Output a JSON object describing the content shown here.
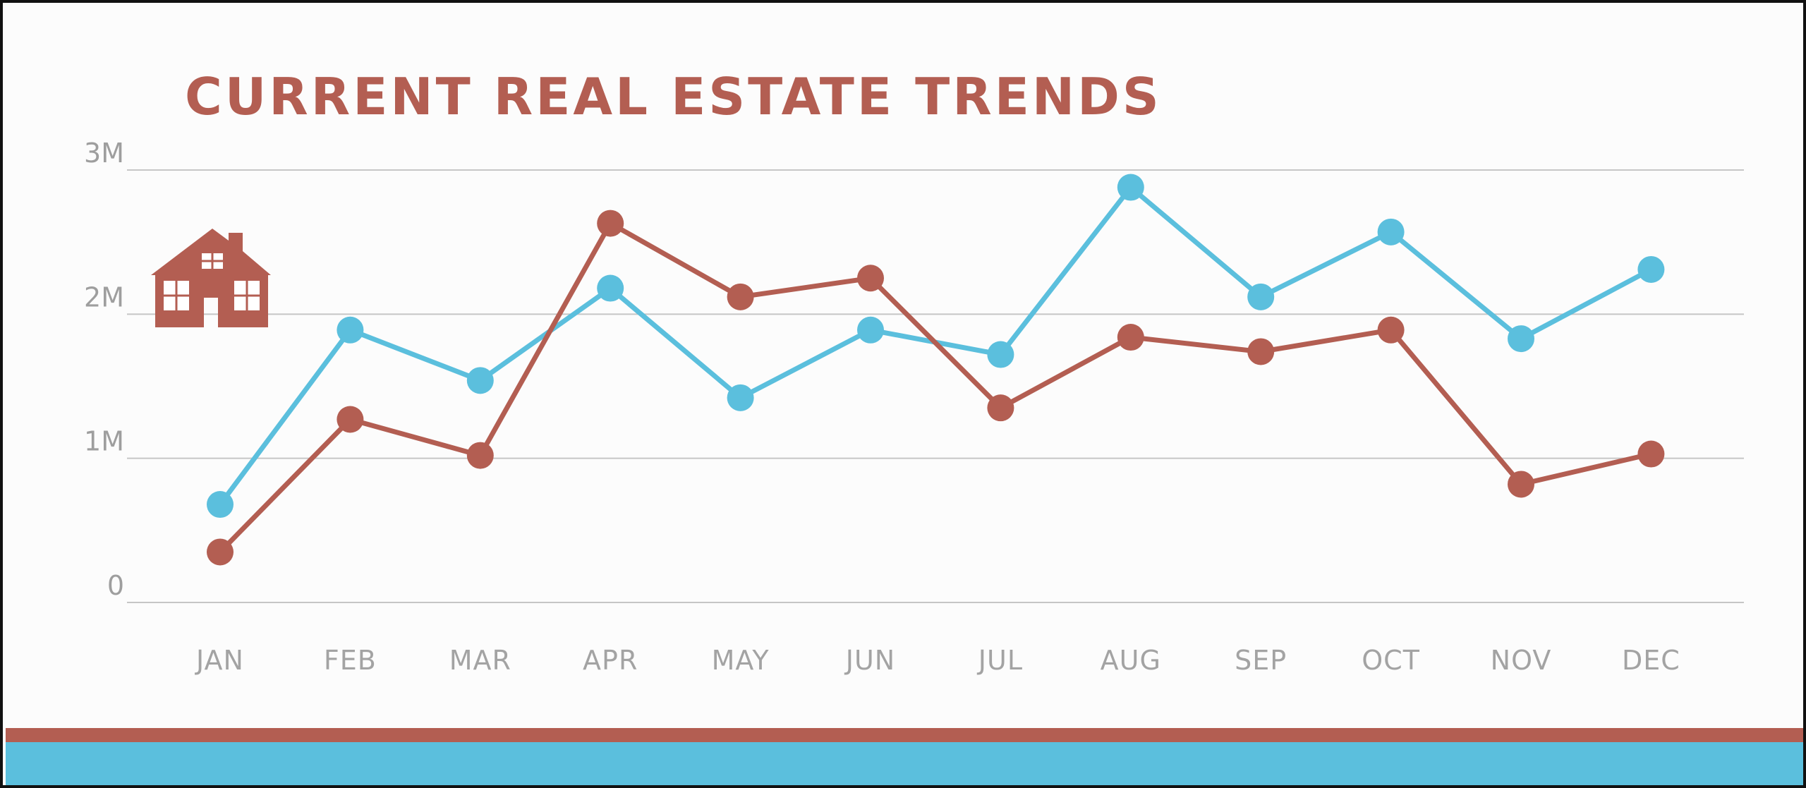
{
  "colors": {
    "accent_red": "#b35e52",
    "accent_blue": "#5bbfdd",
    "grid": "#c6c6c6",
    "axis_text": "#9e9e9e"
  },
  "chart_data": {
    "type": "line",
    "title": "CURRENT REAL ESTATE TRENDS",
    "categories": [
      "JAN",
      "FEB",
      "MAR",
      "APR",
      "MAY",
      "JUN",
      "JUL",
      "AUG",
      "SEP",
      "OCT",
      "NOV",
      "DEC"
    ],
    "y_ticks": [
      {
        "value": 0,
        "label": "0"
      },
      {
        "value": 1000000,
        "label": "1M"
      },
      {
        "value": 2000000,
        "label": "2M"
      },
      {
        "value": 3000000,
        "label": "3M"
      }
    ],
    "ylim": [
      0,
      3000000
    ],
    "grid": true,
    "legend": "none",
    "icon": "house-icon",
    "series": [
      {
        "color": "#5bbfdd",
        "values": [
          680000,
          1890000,
          1540000,
          2180000,
          1420000,
          1890000,
          1720000,
          2880000,
          2120000,
          2570000,
          1830000,
          2310000
        ]
      },
      {
        "color": "#b35e52",
        "values": [
          350000,
          1270000,
          1020000,
          2630000,
          2120000,
          2250000,
          1350000,
          1840000,
          1740000,
          1890000,
          820000,
          1030000
        ]
      }
    ]
  }
}
